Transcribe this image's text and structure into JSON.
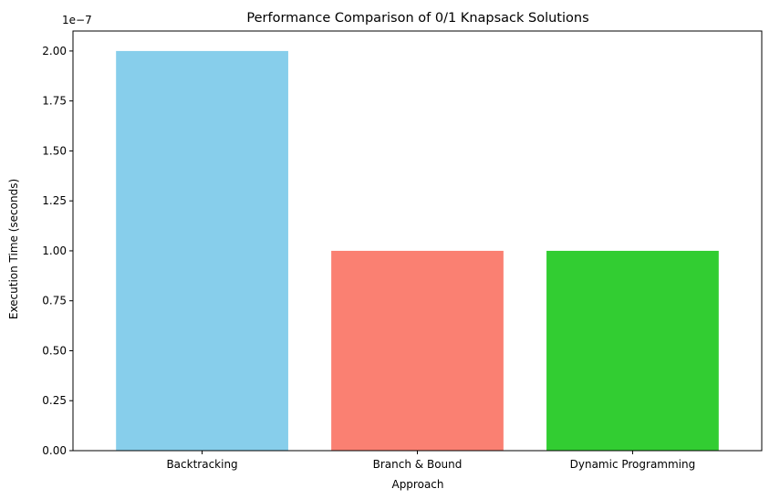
{
  "chart_data": {
    "type": "bar",
    "title": "Performance Comparison of 0/1 Knapsack Solutions",
    "xlabel": "Approach",
    "ylabel": "Execution Time (seconds)",
    "scale_label": "1e−7",
    "categories": [
      "Backtracking",
      "Branch & Bound",
      "Dynamic Programming"
    ],
    "values": [
      2e-07,
      1e-07,
      1e-07
    ],
    "colors": [
      "#87CEEB",
      "#FA8072",
      "#32CD32"
    ],
    "ylim": [
      0,
      2.1e-07
    ],
    "yticks": [
      0,
      2.5e-08,
      5e-08,
      7.5e-08,
      1e-07,
      1.25e-07,
      1.5e-07,
      1.75e-07,
      2e-07
    ],
    "ytick_labels": [
      "0.00",
      "0.25",
      "0.50",
      "0.75",
      "1.00",
      "1.25",
      "1.50",
      "1.75",
      "2.00"
    ],
    "grid": false,
    "legend": false
  }
}
